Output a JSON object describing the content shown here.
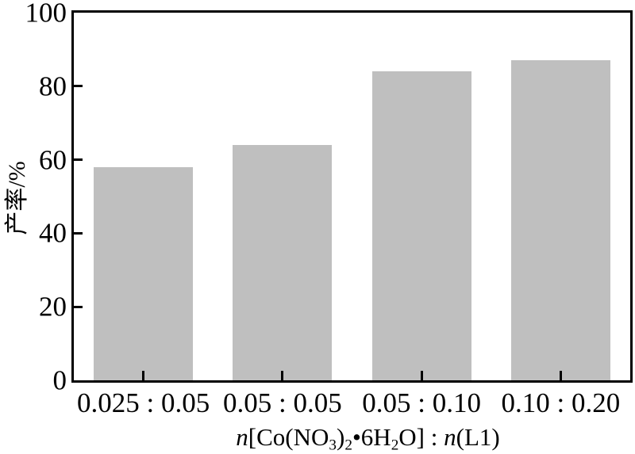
{
  "chart_data": {
    "type": "bar",
    "title": "",
    "categories": [
      "0.025 : 0.05",
      "0.05 : 0.05",
      "0.05 : 0.10",
      "0.10 : 0.20"
    ],
    "values": [
      58,
      64,
      84,
      87
    ],
    "ylabel": "产率/%",
    "xlabel_plain": "n[Co(NO3)2•6H2O] : n(L1)",
    "xlabel_parts": [
      {
        "text": "n",
        "style": "italic"
      },
      {
        "text": "[Co(NO",
        "style": "normal"
      },
      {
        "text": "3",
        "style": "sub"
      },
      {
        "text": ")",
        "style": "normal"
      },
      {
        "text": "2",
        "style": "sub"
      },
      {
        "text": "•6H",
        "style": "normal"
      },
      {
        "text": "2",
        "style": "sub"
      },
      {
        "text": "O] : ",
        "style": "normal"
      },
      {
        "text": "n",
        "style": "italic"
      },
      {
        "text": "(L1)",
        "style": "normal"
      }
    ],
    "ylim": [
      0,
      100
    ],
    "yticks": [
      0,
      20,
      40,
      60,
      80,
      100
    ],
    "grid": false,
    "legend": "none",
    "bar_color": "#bfbfbf",
    "axis_color": "#000000",
    "background_color": "#ffffff"
  }
}
